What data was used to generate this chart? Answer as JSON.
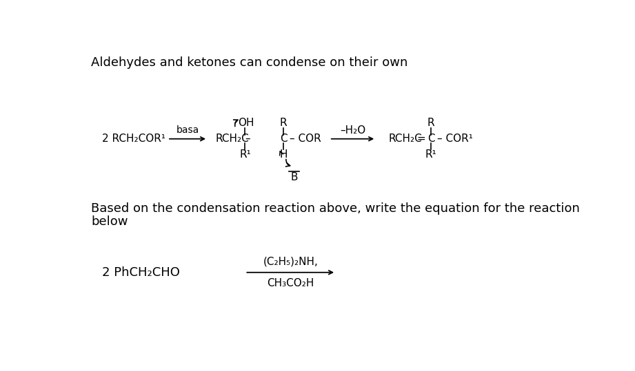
{
  "title": "Aldehydes and ketones can condense on their own",
  "background_color": "#ffffff",
  "text_color": "#000000",
  "fig_width": 9.21,
  "fig_height": 5.39,
  "dpi": 100,
  "bottom_text_line1": "Based on the condensation reaction above, write the equation for the reaction",
  "bottom_text_line2": "below",
  "reactant_label": "2 RCH₂COR¹",
  "basa_label": "basa",
  "minus_h2o": "–H₂O",
  "b_label": "B",
  "bottom_reactant": "2 PhCH₂CHO",
  "arrow_label_top": "(C₂H₅)₂NH,",
  "arrow_label_bottom": "CH₃CO₂H"
}
